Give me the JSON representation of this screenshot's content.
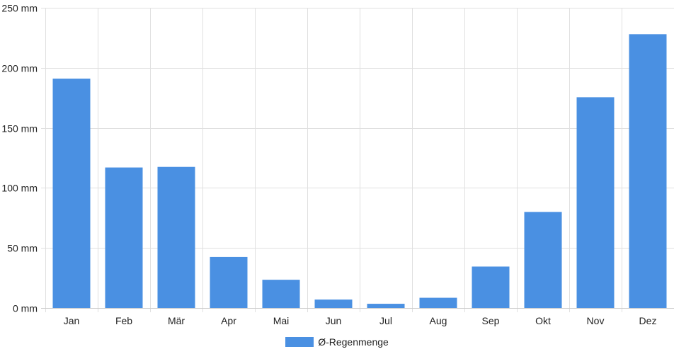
{
  "chart_data": {
    "type": "bar",
    "categories": [
      "Jan",
      "Feb",
      "Mär",
      "Apr",
      "Mai",
      "Jun",
      "Jul",
      "Aug",
      "Sep",
      "Okt",
      "Nov",
      "Dez"
    ],
    "series": [
      {
        "name": "Ø-Regenmenge",
        "values": [
          191,
          117,
          117.5,
          42.5,
          23.5,
          7,
          3.5,
          8.5,
          34.5,
          80,
          175.5,
          228
        ]
      }
    ],
    "ylim": [
      0,
      250
    ],
    "yticks": [
      0,
      50,
      100,
      150,
      200,
      250
    ],
    "y_unit": "mm",
    "grid": true,
    "legend_position": "bottom",
    "colors": {
      "bar": "#4a90e2",
      "grid": "#e0e0e0",
      "axis": "#cccccc"
    }
  }
}
